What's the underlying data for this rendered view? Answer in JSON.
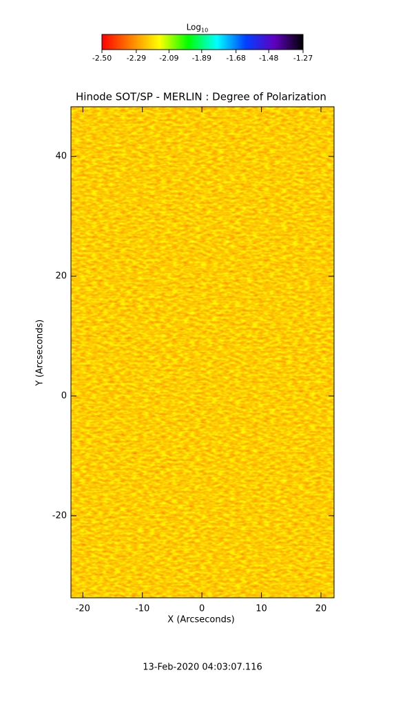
{
  "chart_data": {
    "type": "heatmap",
    "title": "Hinode SOT/SP - MERLIN : Degree of Polarization",
    "x_label": "X (Arcseconds)",
    "y_label": "Y (Arcseconds)",
    "xlim": [
      -22,
      22.2
    ],
    "ylim": [
      -33.7,
      48.3
    ],
    "xticks": [
      -20,
      -10,
      0,
      10,
      20
    ],
    "yticks": [
      -20,
      0,
      20,
      40
    ],
    "colorbar": {
      "label": "Log",
      "label_subscript": "10",
      "clim": [
        -2.5,
        -1.27
      ],
      "ticks": [
        {
          "value": -2.5,
          "label": "-2.50"
        },
        {
          "value": -2.29,
          "label": "-2.29"
        },
        {
          "value": -2.09,
          "label": "-2.09"
        },
        {
          "value": -1.89,
          "label": "-1.89"
        },
        {
          "value": -1.68,
          "label": "-1.68"
        },
        {
          "value": -1.48,
          "label": "-1.48"
        },
        {
          "value": -1.27,
          "label": "-1.27"
        }
      ],
      "colormap": [
        "#ff0000",
        "#ff8000",
        "#ffff00",
        "#00ff00",
        "#00ffff",
        "#0040ff",
        "#6000c0",
        "#000000"
      ]
    },
    "footer": "13-Feb-2020 04:03:07.116"
  }
}
